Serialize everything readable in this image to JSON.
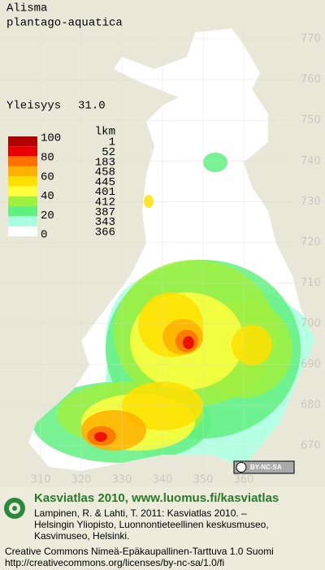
{
  "header": {
    "title_lines": [
      "Alisma",
      "plantago-aquatica"
    ],
    "frequency_label": "Yleisyys",
    "frequency": "31.0"
  },
  "legend": {
    "scale": [
      100,
      80,
      60,
      40,
      20,
      0
    ],
    "count_header": "lkm",
    "counts": [
      1,
      52,
      183,
      458,
      445,
      401,
      412,
      387,
      343,
      366
    ],
    "colors": [
      "#b00000",
      "#e80000",
      "#ff7000",
      "#ffb000",
      "#ffe000",
      "#ffff40",
      "#a0f040",
      "#60f080",
      "#a8ffe0",
      "#ffffff"
    ]
  },
  "grid": {
    "y_labels": [
      770,
      760,
      750,
      740,
      730,
      720,
      710,
      700,
      690,
      680,
      670
    ],
    "x_labels": [
      310,
      320,
      330,
      340,
      350,
      360
    ]
  },
  "badge": "BY-NC-SA",
  "footer": {
    "title": "Kasviatlas 2010, www.luomus.fi/kasviatlas",
    "citation": [
      "Lampinen, R. & Lahti, T. 2011: Kasviatlas 2010. –",
      "Helsingin Yliopisto, Luonnontieteellinen keskusmuseo,",
      "Kasvimuseo, Helsinki."
    ],
    "license": [
      "Creative Commons Nimeä-Epäkaupallinen-Tarttuva 1.0 Suomi",
      "http://creativecommons.org/licenses/by-nc-sa/1.0/fi"
    ]
  }
}
